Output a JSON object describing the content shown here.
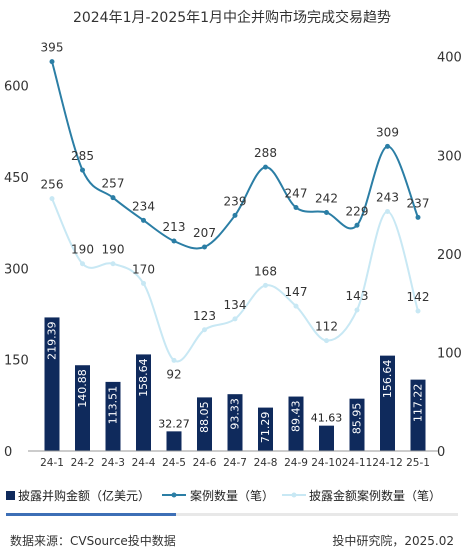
{
  "chart_data": {
    "type": "bar",
    "title": "2024年1月-2025年1月中企并购市场完成交易趋势",
    "categories": [
      "24-1",
      "24-2",
      "24-3",
      "24-4",
      "24-5",
      "24-6",
      "24-7",
      "24-8",
      "24-9",
      "24-10",
      "24-11",
      "24-12",
      "25-1"
    ],
    "left_axis": {
      "ticks": [
        "0",
        "150",
        "300",
        "450",
        "600"
      ],
      "ylim": [
        0,
        680
      ]
    },
    "right_axis": {
      "ticks": [
        "0",
        "100",
        "200",
        "300",
        "400"
      ],
      "ylim": [
        0,
        420
      ]
    },
    "series": [
      {
        "name": "披露并购金额（亿美元）",
        "type": "bar",
        "axis": "left",
        "color": "#0f2a5c",
        "values": [
          219.39,
          140.88,
          113.51,
          158.64,
          32.27,
          88.05,
          93.33,
          71.29,
          89.43,
          41.63,
          85.95,
          156.64,
          117.22
        ],
        "labels": [
          "219.39",
          "140.88",
          "113.51",
          "158.64",
          "32.27",
          "88.05",
          "93.33",
          "71.29",
          "89.43",
          "41.63",
          "85.95",
          "156.64",
          "117.22"
        ]
      },
      {
        "name": "案例数量（笔）",
        "type": "line",
        "axis": "right",
        "color": "#2b7ea5",
        "values": [
          395,
          285,
          257,
          234,
          213,
          207,
          239,
          288,
          247,
          242,
          229,
          309,
          237
        ],
        "labels": [
          "395",
          "285",
          "257",
          "234",
          "213",
          "207",
          "239",
          "288",
          "247",
          "242",
          "229",
          "309",
          "237"
        ]
      },
      {
        "name": "披露金额案例数量（笔）",
        "type": "line",
        "axis": "right",
        "color": "#c8e8f4",
        "values": [
          256,
          190,
          190,
          170,
          92,
          123,
          134,
          168,
          147,
          112,
          143,
          243,
          142
        ],
        "labels": [
          "256",
          "190",
          "190",
          "170",
          "92",
          "123",
          "134",
          "168",
          "147",
          "112",
          "143",
          "243",
          "142"
        ]
      }
    ],
    "legend_position": "bottom",
    "grid": false
  },
  "source": "数据来源：CVSource投中数据",
  "publisher": "投中研究院，2025.02"
}
